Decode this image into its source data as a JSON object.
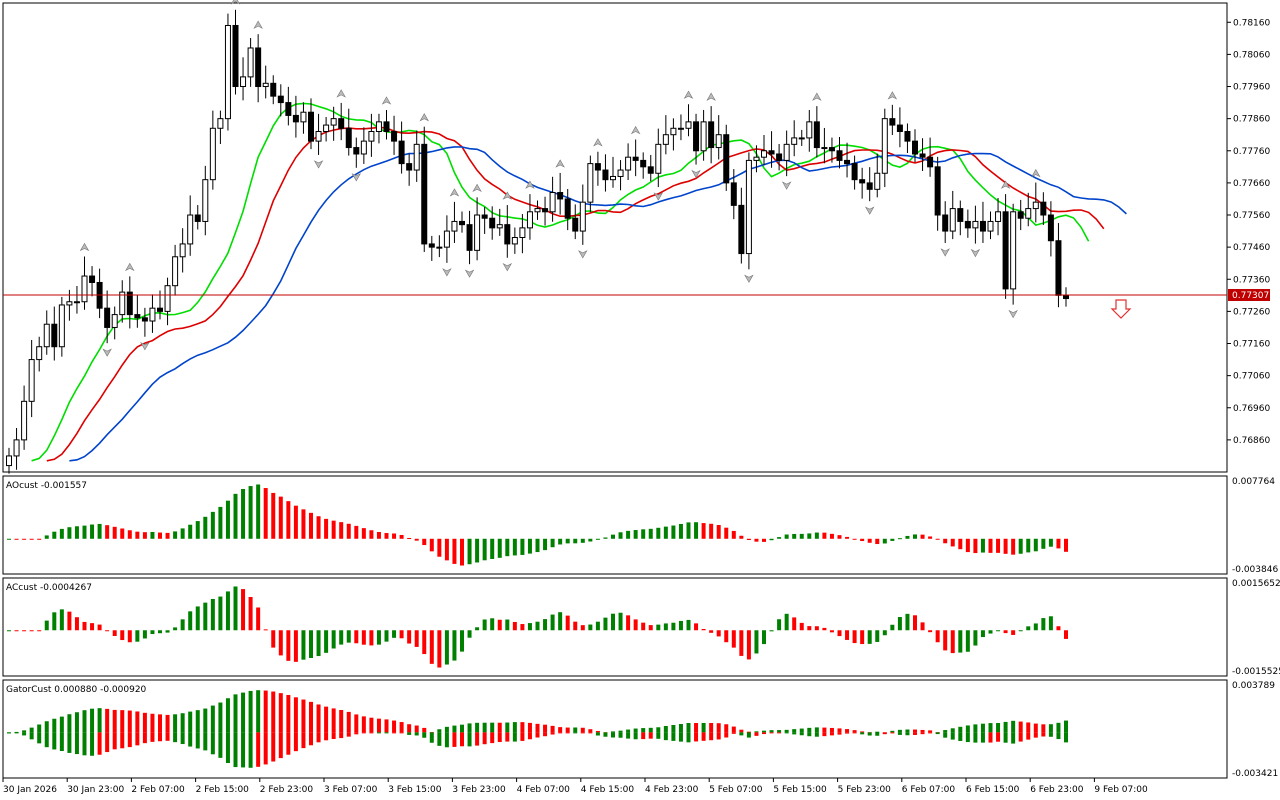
{
  "main": {
    "y_ticks": [
      "0.78160",
      "0.78060",
      "0.77960",
      "0.77860",
      "0.77760",
      "0.77660",
      "0.77560",
      "0.77460",
      "0.77360",
      "0.77260",
      "0.77160",
      "0.77060",
      "0.76960",
      "0.76860"
    ],
    "price_line_value": "0.77307",
    "colors": {
      "up_candle": "#ffffff",
      "down_candle": "#000000",
      "fast_ma": "#00dd00",
      "mid_ma": "#dd0000",
      "slow_ma": "#0044cc",
      "price_line": "#c00000",
      "arrow": "#e03030"
    }
  },
  "panels": [
    {
      "label": "AOcust -0.001557",
      "top": "0.007764",
      "bottom": "-0.003846"
    },
    {
      "label": "ACcust -0.0004267",
      "top": "0.0015652",
      "bottom": "-0.0015525"
    },
    {
      "label": "GatorCust 0.000880 -0.000920",
      "top": "0.003789",
      "bottom": "-0.003421"
    }
  ],
  "x_axis": {
    "labels": [
      "30 Jan 2026",
      "30 Jan 23:00",
      "2 Feb 07:00",
      "2 Feb 15:00",
      "2 Feb 23:00",
      "3 Feb 07:00",
      "3 Feb 15:00",
      "3 Feb 23:00",
      "4 Feb 07:00",
      "4 Feb 15:00",
      "4 Feb 23:00",
      "5 Feb 07:00",
      "5 Feb 15:00",
      "5 Feb 23:00",
      "6 Feb 07:00",
      "6 Feb 15:00",
      "6 Feb 23:00",
      "9 Feb 07:00"
    ]
  },
  "chart_data": [
    {
      "type": "candlestick",
      "title": "",
      "ylim": [
        0.7676,
        0.7822
      ],
      "close": [
        0.7681,
        0.7686,
        0.7698,
        0.7711,
        0.7715,
        0.7722,
        0.7715,
        0.7728,
        0.7729,
        0.7729,
        0.7737,
        0.7735,
        0.7727,
        0.7721,
        0.7725,
        0.7732,
        0.7725,
        0.7724,
        0.7723,
        0.7727,
        0.7726,
        0.7734,
        0.7743,
        0.7747,
        0.7756,
        0.7754,
        0.7767,
        0.7783,
        0.7786,
        0.7815,
        0.7796,
        0.7799,
        0.7808,
        0.7796,
        0.7797,
        0.7793,
        0.7791,
        0.7787,
        0.7785,
        0.7788,
        0.7779,
        0.7782,
        0.7784,
        0.7786,
        0.7783,
        0.7777,
        0.7775,
        0.7779,
        0.7782,
        0.7785,
        0.7782,
        0.7779,
        0.7772,
        0.777,
        0.7778,
        0.7747,
        0.7746,
        0.7746,
        0.7751,
        0.7754,
        0.7753,
        0.7745,
        0.7756,
        0.7755,
        0.7752,
        0.7753,
        0.7747,
        0.7749,
        0.7752,
        0.7757,
        0.7758,
        0.7757,
        0.7763,
        0.7761,
        0.7755,
        0.7751,
        0.776,
        0.7772,
        0.777,
        0.7767,
        0.7768,
        0.777,
        0.7774,
        0.7773,
        0.7771,
        0.7769,
        0.7778,
        0.7781,
        0.7783,
        0.7783,
        0.7785,
        0.7776,
        0.7785,
        0.7777,
        0.7781,
        0.7766,
        0.7759,
        0.7744,
        0.7773,
        0.7774,
        0.7776,
        0.7775,
        0.7773,
        0.7778,
        0.778,
        0.778,
        0.7785,
        0.7777,
        0.7777,
        0.7776,
        0.7773,
        0.7772,
        0.7767,
        0.7766,
        0.7764,
        0.7769,
        0.7786,
        0.7784,
        0.7782,
        0.7779,
        0.7775,
        0.7774,
        0.7771,
        0.7756,
        0.7751,
        0.7758,
        0.7754,
        0.7752,
        0.7754,
        0.7751,
        0.7754,
        0.7757,
        0.7733,
        0.7757,
        0.7755,
        0.7758,
        0.776,
        0.7756,
        0.7748,
        0.7731,
        0.773
      ]
    },
    {
      "type": "bar",
      "name": "AOcust"
    },
    {
      "type": "bar",
      "name": "ACcust"
    },
    {
      "type": "bar",
      "name": "GatorCust"
    }
  ]
}
